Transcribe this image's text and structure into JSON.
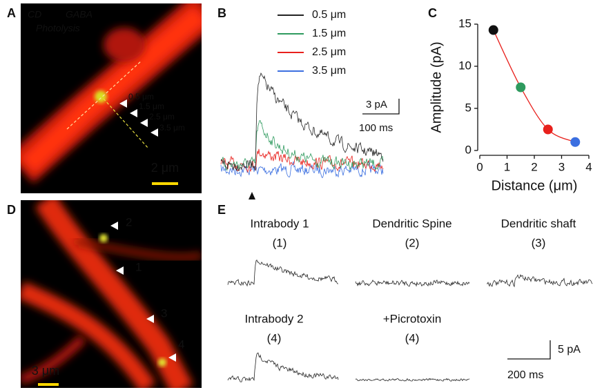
{
  "panels": {
    "a": {
      "label": "A",
      "texts": [
        "CD",
        "GABA",
        "Photolysis"
      ],
      "distances": [
        "0.5 μm",
        "1.5 μm",
        "2.5 μm",
        "3.5 μm"
      ],
      "scale": "2 μm"
    },
    "b": {
      "label": "B",
      "series": [
        {
          "name": "0.5 μm",
          "color": "#222222"
        },
        {
          "name": "1.5 μm",
          "color": "#2e9a5e"
        },
        {
          "name": "2.5 μm",
          "color": "#e8201c"
        },
        {
          "name": "3.5 μm",
          "color": "#3b6fe0"
        }
      ],
      "scale_y": "3 pA",
      "scale_x": "100 ms"
    },
    "c": {
      "label": "C"
    },
    "d": {
      "label": "D",
      "markers": [
        "1",
        "2",
        "3",
        "4"
      ],
      "scale": "3 μm"
    },
    "e": {
      "label": "E",
      "traces": [
        {
          "title": "Intrabody 1",
          "site": "(1)"
        },
        {
          "title": "Dendritic Spine",
          "site": "(2)"
        },
        {
          "title": "Dendritic shaft",
          "site": "(3)"
        },
        {
          "title": "Intrabody 2",
          "site": "(4)"
        },
        {
          "title": "+Picrotoxin",
          "site": "(4)"
        }
      ],
      "scale_y": "5 pA",
      "scale_x": "200 ms"
    }
  },
  "chart_data": {
    "type": "scatter",
    "x": [
      0.5,
      1.5,
      2.5,
      3.5
    ],
    "values": [
      14.3,
      7.5,
      2.5,
      1.0
    ],
    "colors": [
      "#111111",
      "#2e9a5e",
      "#e8201c",
      "#3b6fe0"
    ],
    "line_color": "#e8201c",
    "xlabel": "Distance (μm)",
    "ylabel": "Amplitude (pA)",
    "xlim": [
      0,
      4
    ],
    "ylim": [
      0,
      15
    ],
    "xticks": [
      0,
      1,
      2,
      3,
      4
    ],
    "yticks": [
      0,
      5,
      10,
      15
    ]
  }
}
